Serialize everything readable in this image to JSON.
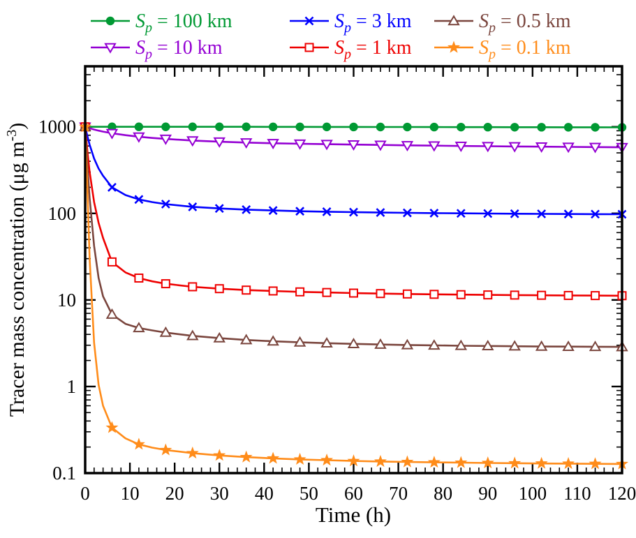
{
  "chart_data": {
    "type": "line",
    "title": "",
    "xlabel": "Time (h)",
    "ylabel": {
      "before": "Tracer mass concentration (μg m",
      "sup": "-3",
      "after": ")"
    },
    "xlim": [
      0,
      120
    ],
    "ylim": [
      0.1,
      5000
    ],
    "yscale": "log",
    "xticks_major": [
      0,
      10,
      20,
      30,
      40,
      50,
      60,
      70,
      80,
      90,
      100,
      110,
      120
    ],
    "xtick_minor_step": 2,
    "ytick_values": [
      0.1,
      1,
      10,
      100,
      1000
    ],
    "ytick_labels": [
      "0.1",
      "1",
      "10",
      "100",
      "1000"
    ],
    "marker_interval": 6,
    "grid": false,
    "legend_position": "top",
    "legend_rows": [
      [
        0,
        2,
        4
      ],
      [
        1,
        3,
        5
      ]
    ],
    "frame_color": "#000000",
    "background": "#ffffff",
    "x": [
      0,
      0.5,
      1,
      2,
      3,
      4,
      6,
      9,
      12,
      15,
      18,
      24,
      30,
      36,
      42,
      48,
      54,
      60,
      66,
      72,
      78,
      84,
      90,
      96,
      102,
      108,
      114,
      120
    ],
    "series": [
      {
        "label": "Sp = 100 km",
        "label_parts": {
          "prefix": "S",
          "sub": "p",
          "rest": " = 100 km"
        },
        "color": "#009933",
        "marker": "circle",
        "values": [
          1000,
          1000,
          1000,
          1000,
          1000,
          1000,
          1000,
          1000,
          1000,
          1000,
          1000,
          1000,
          1000,
          1000,
          998,
          998,
          997,
          996,
          995,
          994,
          993,
          992,
          991,
          990,
          989,
          988,
          987,
          986
        ]
      },
      {
        "label": "Sp = 10 km",
        "label_parts": {
          "prefix": "S",
          "sub": "p",
          "rest": " = 10 km"
        },
        "color": "#9400D3",
        "marker": "triangle-down",
        "values": [
          1000,
          980,
          962,
          930,
          903,
          880,
          842,
          800,
          768,
          744,
          724,
          694,
          673,
          658,
          646,
          637,
          630,
          623,
          617,
          611,
          606,
          601,
          597,
          593,
          589,
          586,
          583,
          580
        ]
      },
      {
        "label": "Sp = 3 km",
        "label_parts": {
          "prefix": "S",
          "sub": "p",
          "rest": " = 3 km"
        },
        "color": "#0000FF",
        "marker": "x",
        "values": [
          1000,
          780,
          620,
          430,
          330,
          272,
          200,
          163,
          145,
          135,
          128,
          119,
          114,
          110.5,
          108,
          106,
          104.5,
          103.3,
          102.3,
          101.4,
          100.7,
          100.1,
          99.6,
          99.1,
          98.7,
          98.3,
          98.0,
          97.7
        ]
      },
      {
        "label": "Sp = 1 km",
        "label_parts": {
          "prefix": "S",
          "sub": "p",
          "rest": " = 1 km"
        },
        "color": "#EE0000",
        "marker": "square",
        "values": [
          1000,
          520,
          300,
          135,
          78,
          52,
          27.5,
          20.8,
          17.9,
          16.4,
          15.4,
          14.2,
          13.5,
          13.0,
          12.7,
          12.4,
          12.2,
          12.0,
          11.85,
          11.72,
          11.61,
          11.52,
          11.44,
          11.38,
          11.32,
          11.27,
          11.23,
          11.2
        ]
      },
      {
        "label": "Sp = 0.5 km",
        "label_parts": {
          "prefix": "S",
          "sub": "p",
          "rest": " = 0.5 km"
        },
        "color": "#7A453D",
        "marker": "triangle-up",
        "values": [
          1000,
          350,
          150,
          42,
          18,
          11,
          6.8,
          5.3,
          4.75,
          4.45,
          4.2,
          3.85,
          3.62,
          3.45,
          3.33,
          3.24,
          3.17,
          3.11,
          3.06,
          3.02,
          2.99,
          2.96,
          2.94,
          2.92,
          2.9,
          2.89,
          2.88,
          2.87
        ]
      },
      {
        "label": "Sp = 0.1 km",
        "label_parts": {
          "prefix": "S",
          "sub": "p",
          "rest": " = 0.1 km"
        },
        "color": "#FF8C1A",
        "marker": "star",
        "values": [
          1000,
          180,
          30,
          3.2,
          1.05,
          0.6,
          0.335,
          0.252,
          0.215,
          0.197,
          0.185,
          0.17,
          0.16,
          0.153,
          0.148,
          0.144,
          0.141,
          0.138,
          0.136,
          0.1345,
          0.1332,
          0.132,
          0.131,
          0.1301,
          0.1293,
          0.1286,
          0.128,
          0.1275
        ]
      }
    ]
  }
}
